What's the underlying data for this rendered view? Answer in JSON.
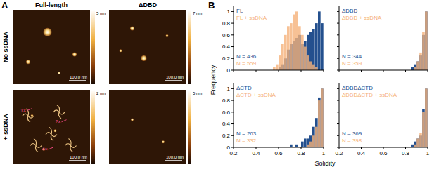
{
  "panel_a": {
    "label": "A",
    "columns": [
      "Full-length",
      "ΔDBD"
    ],
    "rows": [
      "No ssDNA",
      "+ ssDNA"
    ],
    "images": [
      [
        {
          "colorbar_max": "5 nm",
          "scale_bar": "100.0 nm"
        },
        {
          "colorbar_max": "7 nm",
          "scale_bar": "100.0 nm"
        }
      ],
      [
        {
          "colorbar_max": "2 nm",
          "scale_bar": "100.0 nm",
          "annotations": [
            "1×",
            "2×",
            "4×"
          ]
        },
        {
          "colorbar_max": "5 nm",
          "scale_bar": "100.0 nm"
        }
      ]
    ]
  },
  "panel_b": {
    "label": "B",
    "x_label": "Solidity",
    "y_label": "Frequency"
  },
  "chart_data": [
    {
      "type": "histogram",
      "bins": [
        0.5,
        0.525,
        0.55,
        0.575,
        0.6,
        0.625,
        0.65,
        0.675,
        0.7,
        0.725,
        0.75,
        0.775,
        0.8,
        0.825,
        0.85,
        0.875,
        0.9,
        0.925,
        0.95,
        0.975,
        1.0
      ],
      "series": [
        {
          "name": "FL",
          "color": "#24508e",
          "values": [
            0,
            0,
            0,
            0,
            0.05,
            0.1,
            0.2,
            0.35,
            0.45,
            0.5,
            0.55,
            0.6,
            0.45,
            0.5,
            0.6,
            0.65,
            0.7,
            0.8,
            1,
            0.8
          ]
        },
        {
          "name": "FL + ssDNA",
          "color": "#f5b27a",
          "values": [
            0,
            0,
            0.05,
            0.1,
            0.25,
            0.45,
            0.6,
            0.75,
            0.8,
            0.95,
            1,
            0.75,
            0.6,
            0.4,
            0.25,
            0.15,
            0.1,
            0.05,
            0,
            0
          ]
        }
      ],
      "annotations": [
        "N = 436",
        "N = 559"
      ],
      "xlim": [
        0.2,
        1
      ],
      "ylim": [
        0,
        1.1
      ],
      "xticks": [
        0.2,
        0.4,
        0.6,
        0.8,
        1
      ],
      "yticks": [
        0,
        0.2,
        0.4,
        0.6,
        0.8,
        1
      ],
      "tick_labels": "y"
    },
    {
      "type": "histogram",
      "bins": [
        0.5,
        0.525,
        0.55,
        0.575,
        0.6,
        0.625,
        0.65,
        0.675,
        0.7,
        0.725,
        0.75,
        0.775,
        0.8,
        0.825,
        0.85,
        0.875,
        0.9,
        0.925,
        0.95,
        0.975,
        1.0
      ],
      "series": [
        {
          "name": "ΔDBD",
          "color": "#24508e",
          "values": [
            0,
            0,
            0,
            0,
            0,
            0,
            0,
            0,
            0,
            0,
            0,
            0,
            0,
            0,
            0.05,
            0.1,
            0.15,
            0.25,
            0.6,
            1
          ]
        },
        {
          "name": "ΔDBD + ssDNA",
          "color": "#f5b27a",
          "values": [
            0,
            0,
            0,
            0,
            0,
            0,
            0,
            0,
            0,
            0,
            0,
            0,
            0,
            0,
            0,
            0.05,
            0.15,
            0.3,
            0.65,
            1
          ]
        }
      ],
      "annotations": [
        "N = 344",
        "N = 359"
      ],
      "xlim": [
        0.2,
        1
      ],
      "ylim": [
        0,
        1.1
      ],
      "xticks": [
        0.2,
        0.4,
        0.6,
        0.8,
        1
      ],
      "yticks": [
        0,
        0.2,
        0.4,
        0.6,
        0.8,
        1
      ],
      "tick_labels": false
    },
    {
      "type": "histogram",
      "bins": [
        0.5,
        0.525,
        0.55,
        0.575,
        0.6,
        0.625,
        0.65,
        0.675,
        0.7,
        0.725,
        0.75,
        0.775,
        0.8,
        0.825,
        0.85,
        0.875,
        0.9,
        0.925,
        0.95,
        0.975,
        1.0
      ],
      "series": [
        {
          "name": "ΔCTD",
          "color": "#24508e",
          "values": [
            0,
            0,
            0,
            0,
            0,
            0,
            0,
            0,
            0.05,
            0,
            0.05,
            0,
            0.1,
            0.15,
            0.15,
            0.2,
            0.35,
            0.5,
            0.85,
            1
          ]
        },
        {
          "name": "ΔCTD + ssDNA",
          "color": "#f5b27a",
          "values": [
            0,
            0,
            0,
            0,
            0,
            0,
            0,
            0,
            0,
            0,
            0,
            0,
            0,
            0,
            0.05,
            0.1,
            0.2,
            0.35,
            0.8,
            1
          ]
        }
      ],
      "annotations": [
        "N = 263",
        "N = 332"
      ],
      "xlim": [
        0.2,
        1
      ],
      "ylim": [
        0,
        1.1
      ],
      "xticks": [
        0.2,
        0.4,
        0.6,
        0.8,
        1
      ],
      "yticks": [
        0,
        0.2,
        0.4,
        0.6,
        0.8,
        1
      ],
      "tick_labels": true
    },
    {
      "type": "histogram",
      "bins": [
        0.5,
        0.525,
        0.55,
        0.575,
        0.6,
        0.625,
        0.65,
        0.675,
        0.7,
        0.725,
        0.75,
        0.775,
        0.8,
        0.825,
        0.85,
        0.875,
        0.9,
        0.925,
        0.95,
        0.975,
        1.0
      ],
      "series": [
        {
          "name": "ΔDBDΔCTD",
          "color": "#24508e",
          "values": [
            0,
            0,
            0,
            0,
            0,
            0,
            0,
            0,
            0,
            0,
            0,
            0,
            0,
            0,
            0.05,
            0.1,
            0.15,
            0.2,
            0.65,
            1
          ]
        },
        {
          "name": "ΔDBDΔCTD + ssDNA",
          "color": "#f5b27a",
          "values": [
            0,
            0,
            0,
            0,
            0,
            0,
            0,
            0,
            0,
            0,
            0,
            0,
            0,
            0,
            0,
            0.05,
            0.15,
            0.25,
            0.6,
            1
          ]
        }
      ],
      "annotations": [
        "N = 369",
        "N = 398"
      ],
      "xlim": [
        0.2,
        1
      ],
      "ylim": [
        0,
        1.1
      ],
      "xticks": [
        0.2,
        0.4,
        0.6,
        0.8,
        1
      ],
      "yticks": [
        0,
        0.2,
        0.4,
        0.6,
        0.8,
        1
      ],
      "tick_labels": "x"
    }
  ]
}
